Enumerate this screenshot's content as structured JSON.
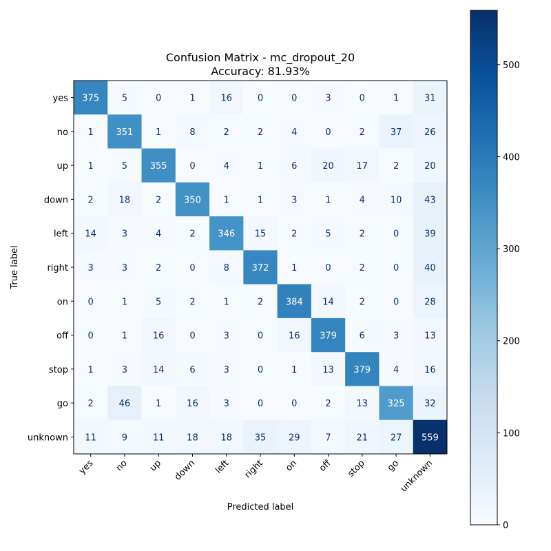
{
  "chart_data": {
    "type": "heatmap",
    "title": "Confusion Matrix - mc_dropout_20",
    "subtitle": "Accuracy: 81.93%",
    "xlabel": "Predicted label",
    "ylabel": "True label",
    "labels": [
      "yes",
      "no",
      "up",
      "down",
      "left",
      "right",
      "on",
      "off",
      "stop",
      "go",
      "unknown"
    ],
    "matrix": [
      [
        375,
        5,
        0,
        1,
        16,
        0,
        0,
        3,
        0,
        1,
        31
      ],
      [
        1,
        351,
        1,
        8,
        2,
        2,
        4,
        0,
        2,
        37,
        26
      ],
      [
        1,
        5,
        355,
        0,
        4,
        1,
        6,
        20,
        17,
        2,
        20
      ],
      [
        2,
        18,
        2,
        350,
        1,
        1,
        3,
        1,
        4,
        10,
        43
      ],
      [
        14,
        3,
        4,
        2,
        346,
        15,
        2,
        5,
        2,
        0,
        39
      ],
      [
        3,
        3,
        2,
        0,
        8,
        372,
        1,
        0,
        2,
        0,
        40
      ],
      [
        0,
        1,
        5,
        2,
        1,
        2,
        384,
        14,
        2,
        0,
        28
      ],
      [
        0,
        1,
        16,
        0,
        3,
        0,
        16,
        379,
        6,
        3,
        13
      ],
      [
        1,
        3,
        14,
        6,
        3,
        0,
        1,
        13,
        379,
        4,
        16
      ],
      [
        2,
        46,
        1,
        16,
        3,
        0,
        0,
        2,
        13,
        325,
        32
      ],
      [
        11,
        9,
        11,
        18,
        18,
        35,
        29,
        7,
        21,
        27,
        559
      ]
    ],
    "colormap": "Blues",
    "vmin": 0,
    "vmax": 559,
    "colorbar_ticks": [
      0,
      100,
      200,
      300,
      400,
      500
    ],
    "text_color_light": "#ffffff",
    "text_color_dark": "#08306b"
  }
}
